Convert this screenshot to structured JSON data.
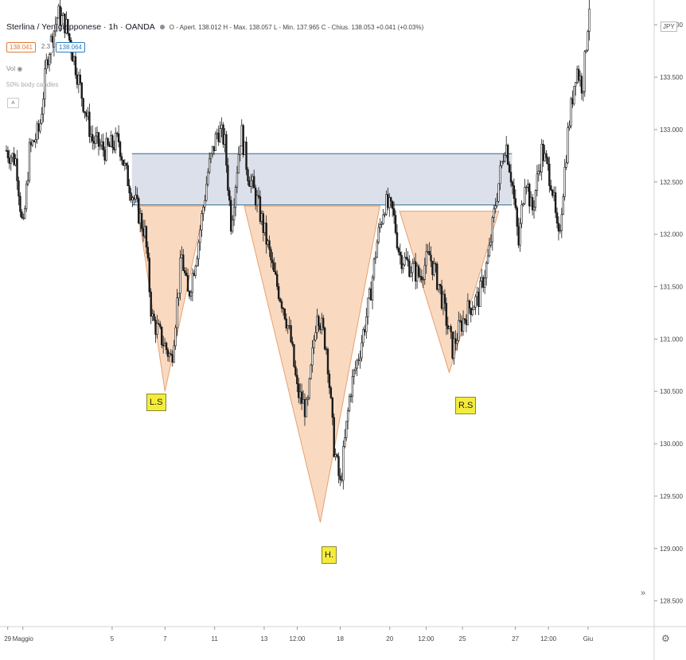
{
  "header": {
    "symbol": "Sterlina / Yen giapponese · 1h · OANDA",
    "ohlc": "O - Apert. 138.012 H - Max. 138.057 L - Min. 137.965 C - Chius. 138.053 +0.041 (+0.03%)",
    "sell_price": "138.041",
    "spread": "2.3",
    "buy_price": "138.064",
    "volume_label": "Vol",
    "volume_sub": "50% body candles",
    "collapse_icon": "chevron-up-icon"
  },
  "currency": "JPY",
  "labels": {
    "left_shoulder": "L.S",
    "head": "H.",
    "right_shoulder": "R.S"
  },
  "colors": {
    "pattern_fill": "#f8d3b6",
    "pattern_stroke": "#e8a070",
    "zone_fill": "#d6dbe6",
    "zone_border": "#2f6b8f",
    "candle": "#1a1a1a",
    "label_bg": "#f4ec3a"
  },
  "chart_data": {
    "type": "candlestick",
    "title": "Sterlina / Yen giapponese · 1h · OANDA",
    "y_ticks": [
      128.5,
      129.0,
      129.5,
      130.0,
      130.5,
      131.0,
      131.5,
      132.0,
      132.5,
      133.0,
      133.5,
      134.0
    ],
    "y_tick_labels": [
      "128.500",
      "129.000",
      "129.500",
      "130.000",
      "130.500",
      "131.000",
      "131.500",
      "132.000",
      "132.500",
      "133.000",
      "133.500",
      "134.000"
    ],
    "ylim": [
      128.3,
      134.1
    ],
    "x_tick_labels": [
      "29",
      "Maggio",
      "5",
      "7",
      "11",
      "13",
      "12:00",
      "18",
      "20",
      "12:00",
      "25",
      "27",
      "12:00",
      "Giu"
    ],
    "x_tick_positions": [
      0.02,
      0.25,
      1.6,
      2.4,
      3.15,
      3.9,
      4.4,
      5.05,
      5.8,
      6.35,
      6.9,
      7.7,
      8.2,
      8.8
    ],
    "xlim": [
      0,
      9.8
    ],
    "price_path": [
      [
        0.0,
        132.8
      ],
      [
        0.15,
        132.7
      ],
      [
        0.25,
        132.0
      ],
      [
        0.35,
        132.8
      ],
      [
        0.5,
        133.0
      ],
      [
        0.62,
        133.7
      ],
      [
        0.78,
        134.1
      ],
      [
        0.9,
        134.0
      ],
      [
        1.05,
        133.6
      ],
      [
        1.15,
        133.3
      ],
      [
        1.3,
        132.9
      ],
      [
        1.5,
        132.8
      ],
      [
        1.7,
        132.9
      ],
      [
        1.8,
        132.6
      ],
      [
        1.95,
        132.3
      ],
      [
        2.1,
        132.0
      ],
      [
        2.2,
        131.2
      ],
      [
        2.35,
        131.0
      ],
      [
        2.5,
        130.8
      ],
      [
        2.65,
        131.8
      ],
      [
        2.75,
        131.4
      ],
      [
        2.9,
        131.9
      ],
      [
        3.05,
        132.6
      ],
      [
        3.2,
        133.0
      ],
      [
        3.3,
        132.9
      ],
      [
        3.4,
        132.1
      ],
      [
        3.55,
        133.0
      ],
      [
        3.65,
        132.6
      ],
      [
        3.8,
        132.3
      ],
      [
        3.95,
        131.9
      ],
      [
        4.05,
        131.6
      ],
      [
        4.2,
        131.3
      ],
      [
        4.3,
        131.0
      ],
      [
        4.4,
        130.5
      ],
      [
        4.55,
        130.3
      ],
      [
        4.7,
        131.3
      ],
      [
        4.85,
        130.9
      ],
      [
        4.95,
        130.0
      ],
      [
        5.05,
        129.6
      ],
      [
        5.2,
        130.5
      ],
      [
        5.35,
        130.9
      ],
      [
        5.5,
        131.4
      ],
      [
        5.6,
        131.9
      ],
      [
        5.72,
        132.3
      ],
      [
        5.85,
        132.2
      ],
      [
        5.95,
        131.8
      ],
      [
        6.1,
        131.7
      ],
      [
        6.25,
        131.6
      ],
      [
        6.4,
        131.8
      ],
      [
        6.55,
        131.5
      ],
      [
        6.65,
        131.2
      ],
      [
        6.75,
        130.9
      ],
      [
        6.85,
        131.1
      ],
      [
        7.0,
        131.3
      ],
      [
        7.15,
        131.4
      ],
      [
        7.3,
        131.8
      ],
      [
        7.4,
        132.3
      ],
      [
        7.55,
        132.9
      ],
      [
        7.65,
        132.5
      ],
      [
        7.75,
        131.9
      ],
      [
        7.85,
        132.6
      ],
      [
        7.95,
        132.2
      ],
      [
        8.1,
        132.8
      ],
      [
        8.25,
        132.5
      ],
      [
        8.35,
        131.9
      ],
      [
        8.5,
        133.0
      ],
      [
        8.62,
        133.6
      ],
      [
        8.72,
        133.4
      ],
      [
        8.82,
        134.2
      ]
    ],
    "resistance_zone": [
      132.28,
      132.77
    ],
    "resistance_zone_x": [
      1.9,
      7.65
    ],
    "pattern_triangles": [
      {
        "name": "L.S",
        "points": [
          [
            1.98,
            132.27
          ],
          [
            2.4,
            130.5
          ],
          [
            3.0,
            132.27
          ]
        ]
      },
      {
        "name": "H.",
        "points": [
          [
            3.6,
            132.27
          ],
          [
            4.75,
            129.25
          ],
          [
            5.65,
            132.27
          ]
        ]
      },
      {
        "name": "R.S",
        "points": [
          [
            5.95,
            132.22
          ],
          [
            6.7,
            130.68
          ],
          [
            7.45,
            132.22
          ]
        ]
      }
    ]
  }
}
